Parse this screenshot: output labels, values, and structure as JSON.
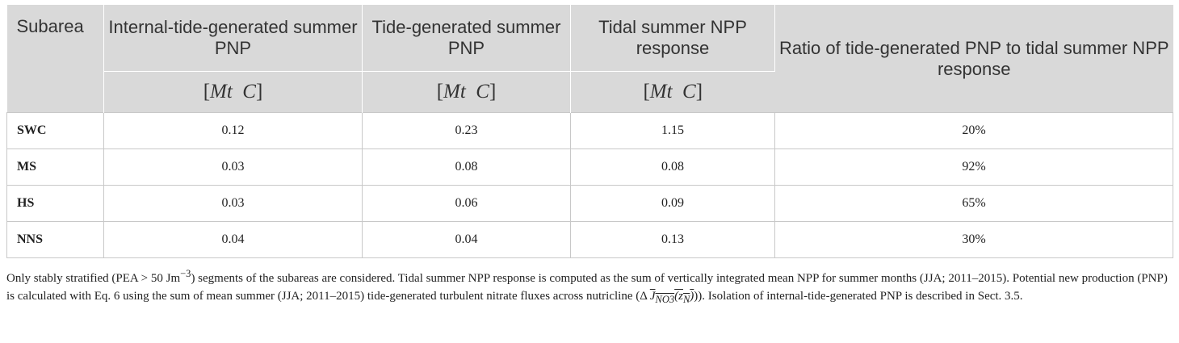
{
  "table": {
    "headers": {
      "subarea": "Subarea",
      "col1": "Internal-tide-generated summer PNP",
      "col2": "Tide-generated summer PNP",
      "col3": "Tidal summer NPP response",
      "col4": "Ratio of tide-generated PNP to tidal summer NPP response"
    },
    "units": {
      "open": "[",
      "mt": "Mt",
      "c": "C",
      "close": "]"
    },
    "rows": [
      {
        "subarea": "SWC",
        "col1": "0.12",
        "col2": "0.23",
        "col3": "1.15",
        "col4": "20%"
      },
      {
        "subarea": "MS",
        "col1": "0.03",
        "col2": "0.08",
        "col3": "0.08",
        "col4": "92%"
      },
      {
        "subarea": "HS",
        "col1": "0.03",
        "col2": "0.06",
        "col3": "0.09",
        "col4": "65%"
      },
      {
        "subarea": "NNS",
        "col1": "0.04",
        "col2": "0.04",
        "col3": "0.13",
        "col4": "30%"
      }
    ]
  },
  "notes": {
    "p1": "Only stably stratified (PEA > 50 Jm",
    "p1_sup": "−3",
    "p2": ") segments of the subareas are considered. Tidal summer NPP response is computed as the sum of vertically integrated mean NPP for summer months (JJA; 2011–2015). Potential new production (PNP) is calculated with Eq. 6 using the sum of mean summer (JJA; 2011–2015) tide-generated turbulent nitrate fluxes across nutricline (Δ ",
    "sym": "J",
    "sym_sub": "NO3",
    "sym_arg": "(z",
    "sym_arg_sub": "N",
    "p3": ")). Isolation of internal-tide-generated PNP is described in Sect. 3.5."
  }
}
